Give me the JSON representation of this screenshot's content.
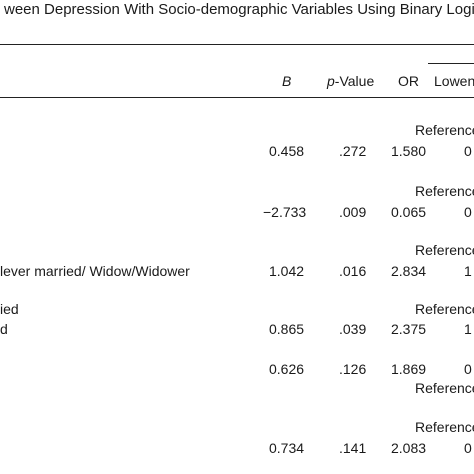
{
  "table": {
    "title": "ween Depression With Socio-demographic Variables Using Binary Logistic",
    "columns": {
      "b": "B",
      "p_prefix": "p",
      "p_suffix": "-Value",
      "or": "OR",
      "lower": "Lowen"
    },
    "reference_label": "Reference",
    "rows": [
      {
        "b": "0.458",
        "p": ".272",
        "or": "1.580",
        "lower": "0"
      },
      {
        "b": "−2.733",
        "p": ".009",
        "or": "0.065",
        "lower": "0"
      },
      {
        "label": "lever married/ Widow/Widower",
        "b": "1.042",
        "p": ".016",
        "or": "2.834",
        "lower": "1"
      },
      {
        "label_above": "ied",
        "label": "d",
        "b": "0.865",
        "p": ".039",
        "or": "2.375",
        "lower": "1"
      },
      {
        "b": "0.626",
        "p": ".126",
        "or": "1.869",
        "lower": "0"
      },
      {
        "b": "0.734",
        "p": ".141",
        "or": "2.083",
        "lower": "0"
      }
    ]
  }
}
